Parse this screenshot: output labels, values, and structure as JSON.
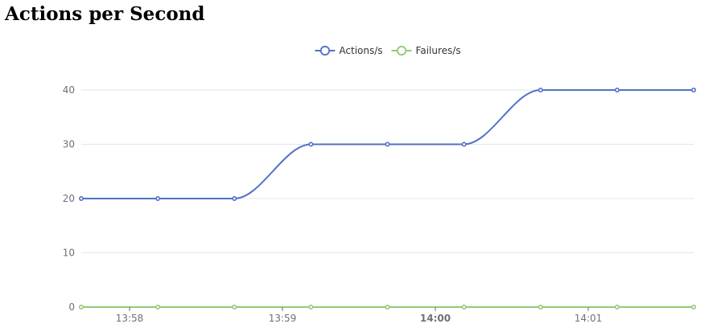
{
  "page": {
    "title": "Actions per Second"
  },
  "chart_data": {
    "type": "line",
    "title": "Actions per Second",
    "xlabel": "",
    "ylabel": "",
    "x_ticks": [
      {
        "label": "13:58",
        "bold": false
      },
      {
        "label": "13:59",
        "bold": false
      },
      {
        "label": "14:00",
        "bold": true
      },
      {
        "label": "14:01",
        "bold": false
      }
    ],
    "y_ticks": [
      0,
      10,
      20,
      30,
      40
    ],
    "ylim": [
      0,
      40
    ],
    "grid": true,
    "smooth": true,
    "legend_position": "top-center",
    "series": [
      {
        "name": "Actions/s",
        "color": "#5470c6",
        "values": [
          20,
          20,
          20,
          30,
          30,
          30,
          40,
          40,
          40
        ]
      },
      {
        "name": "Failures/s",
        "color": "#91cc75",
        "values": [
          0,
          0,
          0,
          0,
          0,
          0,
          0,
          0,
          0
        ]
      }
    ]
  }
}
